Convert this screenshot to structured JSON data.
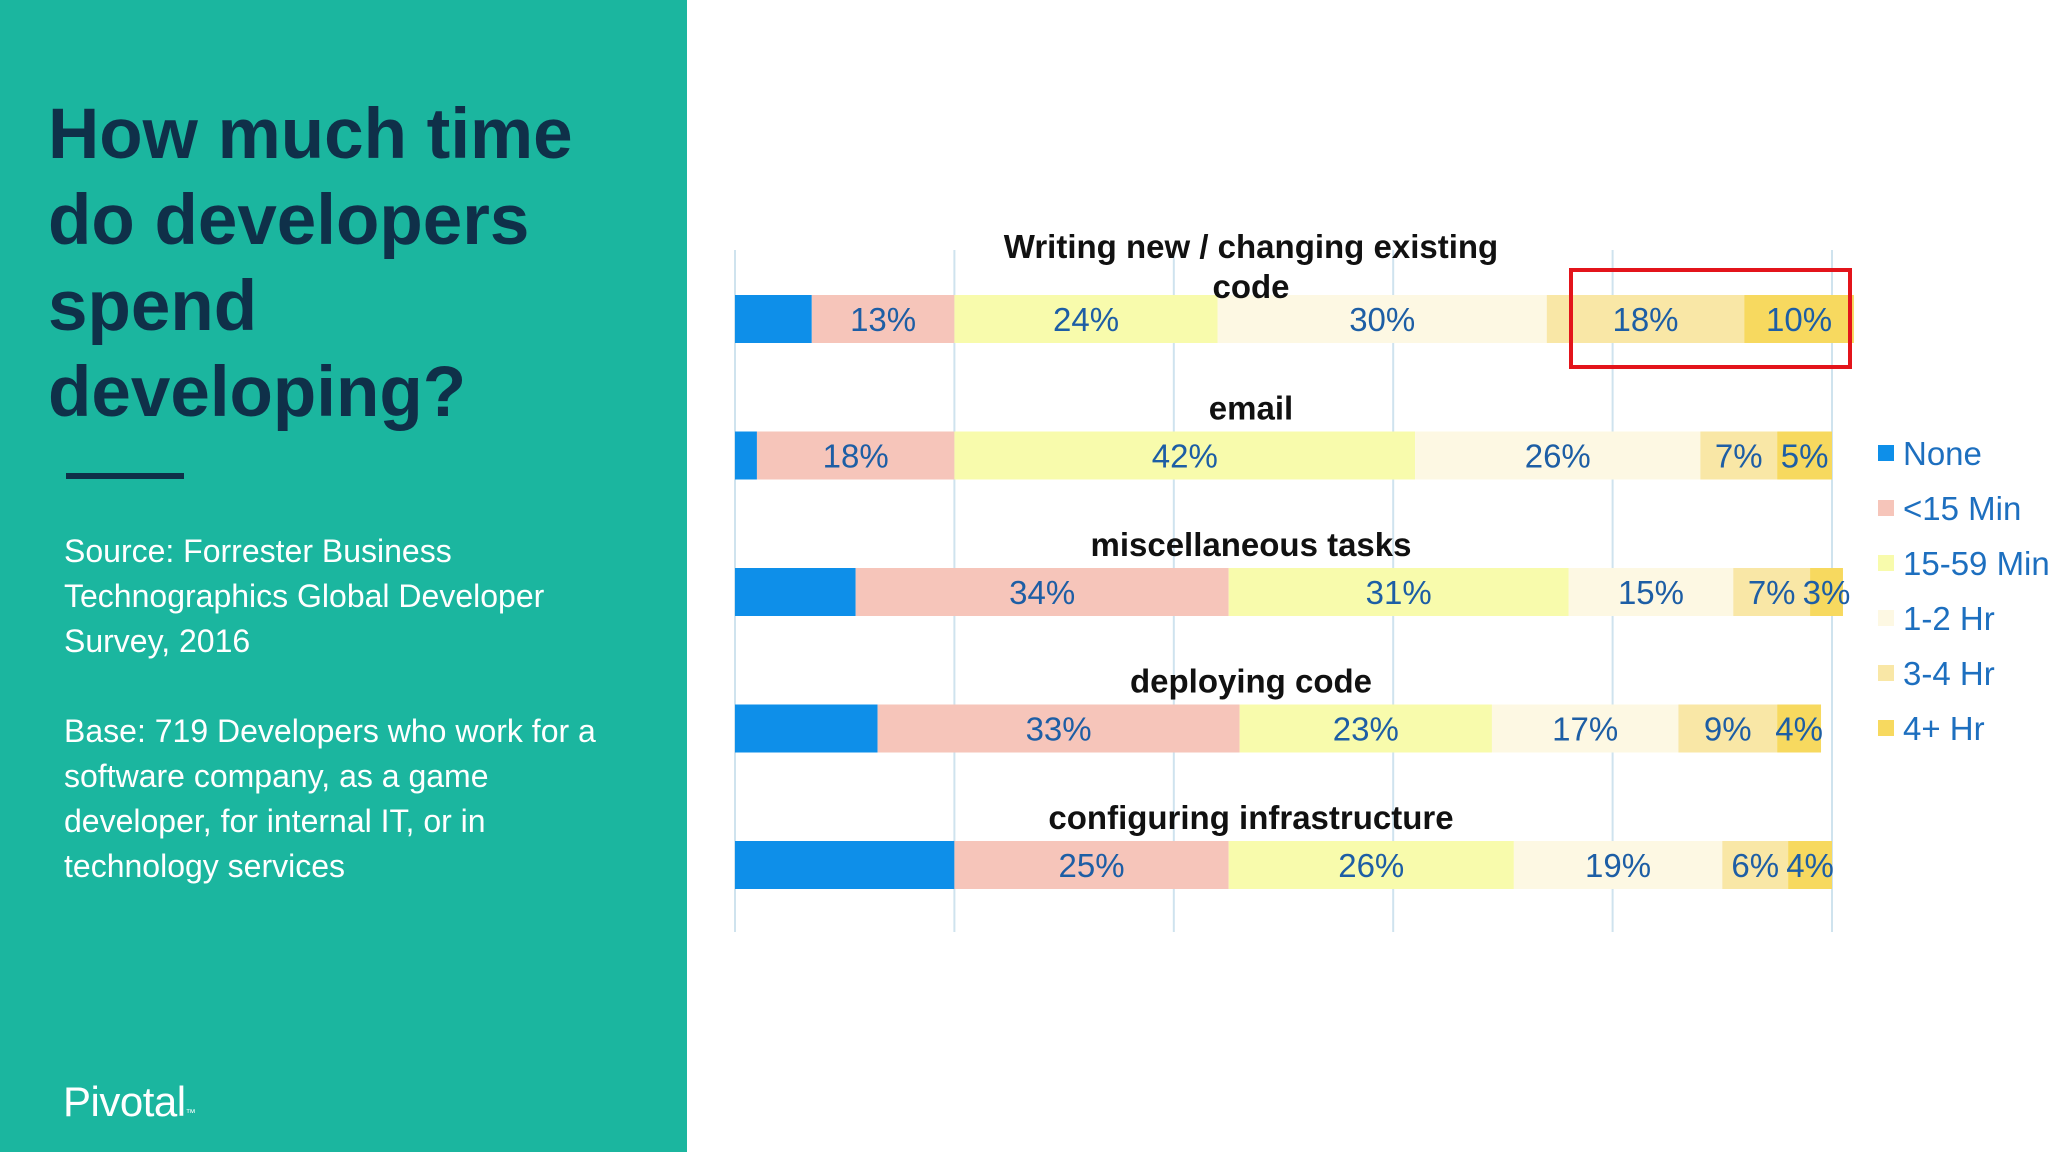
{
  "slide": {
    "title": "How much time do developers spend developing?",
    "source_note": "Source: Forrester Business Technographics Global Developer Survey, 2016",
    "base_note": "Base: 719 Developers who work for a software company, as a game developer, for internal IT, or in technology services",
    "logo_text": "Pivotal"
  },
  "colors": {
    "panel_background": "#1bb69f",
    "title": "#0f3049",
    "highlight": "#e3141b"
  },
  "chart_data": {
    "type": "bar",
    "orientation": "horizontal",
    "stacked": true,
    "grid": true,
    "legend_position": "right",
    "xlim": [
      0,
      100
    ],
    "categories": [
      {
        "title_lines": [
          "Writing new / changing existing",
          "code"
        ]
      },
      {
        "title_lines": [
          "email"
        ]
      },
      {
        "title_lines": [
          "miscellaneous tasks"
        ]
      },
      {
        "title_lines": [
          "deploying code"
        ]
      },
      {
        "title_lines": [
          "configuring infrastructure"
        ]
      }
    ],
    "series": [
      {
        "name": "None",
        "color": "#0e8fe9",
        "values": [
          7,
          2,
          11,
          13,
          20
        ]
      },
      {
        "name": "<15 Min",
        "color": "#f6c5ba",
        "values": [
          13,
          18,
          34,
          33,
          25
        ]
      },
      {
        "name": "15-59 Min",
        "color": "#f8fbac",
        "values": [
          24,
          42,
          31,
          23,
          26
        ]
      },
      {
        "name": "1-2 Hr",
        "color": "#fdf8e3",
        "values": [
          30,
          26,
          15,
          17,
          19
        ]
      },
      {
        "name": "3-4 Hr",
        "color": "#f9e7a6",
        "values": [
          18,
          7,
          7,
          9,
          6
        ]
      },
      {
        "name": "4+ Hr",
        "color": "#f7d95f",
        "values": [
          10,
          5,
          3,
          4,
          4
        ]
      }
    ],
    "data_labels": [
      [
        "",
        "13%",
        "24%",
        "30%",
        "18%",
        "10%"
      ],
      [
        "",
        "18%",
        "42%",
        "26%",
        "7%",
        "5%"
      ],
      [
        "",
        "34%",
        "31%",
        "15%",
        "7%",
        "3%"
      ],
      [
        "",
        "33%",
        "23%",
        "17%",
        "9%",
        "4%"
      ],
      [
        "",
        "25%",
        "26%",
        "19%",
        "6%",
        "4%"
      ]
    ],
    "highlight": {
      "category_index": 0,
      "series": [
        "3-4 Hr",
        "4+ Hr"
      ]
    }
  }
}
